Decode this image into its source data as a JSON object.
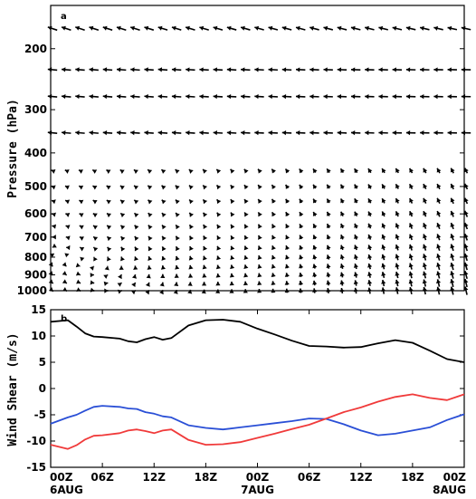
{
  "chart_data": [
    {
      "type": "vector",
      "panel_label": "a",
      "ylabel": "Pressure (hPa)",
      "y_scale": "log",
      "y_inverted": true,
      "ylim": [
        1000,
        150
      ],
      "ytick_labels": [
        "200",
        "300",
        "400",
        "500",
        "600",
        "700",
        "800",
        "900",
        "1000"
      ],
      "yticks": [
        200,
        300,
        400,
        500,
        600,
        700,
        800,
        900,
        1000
      ],
      "xlim": [
        0,
        48
      ],
      "x_unit": "hours since 00Z 6AUG",
      "levels_hPa": [
        175,
        230,
        275,
        350,
        450,
        500,
        550,
        600,
        650,
        700,
        750,
        800,
        850,
        900,
        950,
        1000
      ],
      "times_h": [
        0,
        1.6,
        3.2,
        4.8,
        6.4,
        8,
        9.6,
        11.2,
        12.8,
        14.4,
        16,
        17.6,
        19.2,
        20.8,
        22.4,
        24,
        25.6,
        27.2,
        28.8,
        30.4,
        32,
        33.6,
        35.2,
        36.8,
        38.4,
        40,
        41.6,
        43.2,
        44.8,
        46.4,
        48
      ],
      "note": "wind vectors; directions and magnitudes estimated from figure",
      "vector_color": "#000000"
    },
    {
      "type": "line",
      "panel_label": "b",
      "ylabel": "Wind Shear (m/s)",
      "ylim": [
        -15,
        15
      ],
      "yticks": [
        -15,
        -10,
        -5,
        0,
        5,
        10,
        15
      ],
      "ytick_labels": [
        "-15",
        "-10",
        "-5",
        "0",
        "5",
        "10",
        "15"
      ],
      "xlim": [
        0,
        48
      ],
      "xticks": [
        0,
        6,
        12,
        18,
        24,
        30,
        36,
        42,
        48
      ],
      "xtick_labels": [
        "00Z",
        "06Z",
        "12Z",
        "18Z",
        "00Z",
        "06Z",
        "12Z",
        "18Z",
        "00Z"
      ],
      "xdate_labels": [
        {
          "x": 0,
          "label": "6AUG"
        },
        {
          "x": 24,
          "label": "7AUG"
        },
        {
          "x": 48,
          "label": "8AUG"
        }
      ],
      "x": [
        0,
        2,
        3,
        4,
        5,
        6,
        8,
        9,
        10,
        11,
        12,
        13,
        14,
        16,
        18,
        20,
        22,
        24,
        26,
        28,
        30,
        32,
        34,
        36,
        38,
        40,
        42,
        44,
        46,
        48
      ],
      "series": [
        {
          "color": "#000000",
          "values": [
            12.7,
            13.0,
            11.8,
            10.5,
            9.9,
            9.8,
            9.5,
            9.0,
            8.8,
            9.4,
            9.8,
            9.3,
            9.6,
            12.0,
            13.0,
            13.1,
            12.7,
            11.4,
            10.3,
            9.1,
            8.1,
            8.0,
            7.8,
            7.9,
            8.6,
            9.2,
            8.7,
            7.2,
            5.6,
            5.0
          ]
        },
        {
          "color": "#2a4fd6",
          "values": [
            -6.7,
            -5.5,
            -5.0,
            -4.2,
            -3.5,
            -3.3,
            -3.5,
            -3.8,
            -3.9,
            -4.5,
            -4.8,
            -5.3,
            -5.5,
            -7.0,
            -7.5,
            -7.8,
            -7.4,
            -7.0,
            -6.6,
            -6.2,
            -5.7,
            -5.8,
            -6.8,
            -8.0,
            -8.9,
            -8.6,
            -8.0,
            -7.4,
            -6.0,
            -4.9
          ]
        },
        {
          "color": "#f03a3a",
          "values": [
            -10.7,
            -11.5,
            -10.8,
            -9.7,
            -9.0,
            -8.9,
            -8.5,
            -8.0,
            -7.8,
            -8.1,
            -8.5,
            -8.0,
            -7.8,
            -9.8,
            -10.7,
            -10.6,
            -10.2,
            -9.4,
            -8.6,
            -7.7,
            -6.9,
            -5.7,
            -4.5,
            -3.6,
            -2.5,
            -1.6,
            -1.1,
            -1.8,
            -2.2,
            -1.1
          ]
        }
      ]
    }
  ]
}
